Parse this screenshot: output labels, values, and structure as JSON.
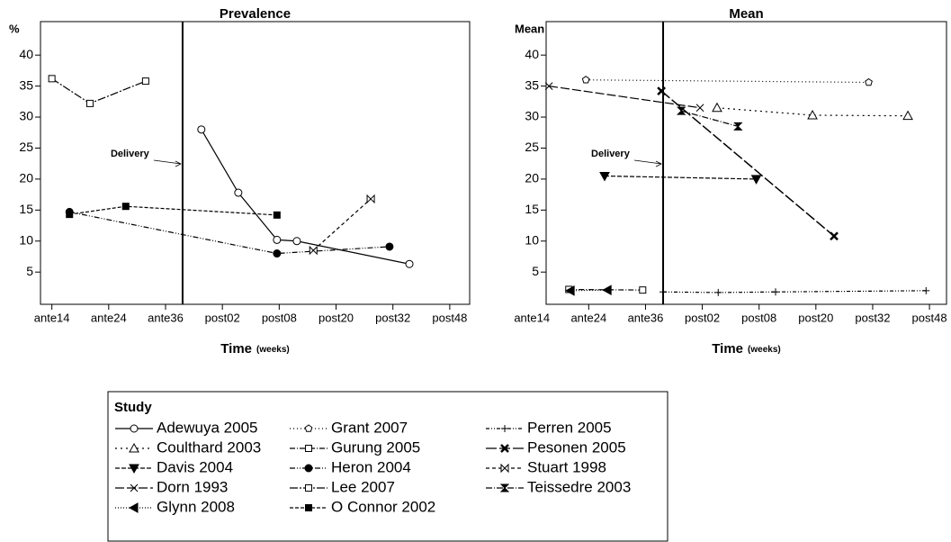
{
  "chart_data": [
    {
      "type": "line",
      "title": "Prevalence",
      "ylabel": "%",
      "xlabel": "Time",
      "xlabel_unit": "(weeks)",
      "xlim": [
        -0.2,
        7.35
      ],
      "ylim": [
        -0.2,
        45.4
      ],
      "xticks": [
        {
          "value": 0,
          "label": "ante14"
        },
        {
          "value": 1,
          "label": "ante24"
        },
        {
          "value": 2,
          "label": "ante36"
        },
        {
          "value": 3,
          "label": "post02"
        },
        {
          "value": 4,
          "label": "post08"
        },
        {
          "value": 5,
          "label": "post20"
        },
        {
          "value": 6,
          "label": "post32"
        },
        {
          "value": 7,
          "label": "post48"
        }
      ],
      "yticks": [
        5,
        10,
        15,
        20,
        25,
        30,
        35,
        40
      ],
      "vline": 2.3,
      "annotation": "Delivery",
      "series": [
        {
          "name": "Adewuya 2005",
          "color": "#000000",
          "x": [
            2.63,
            3.28,
            3.96,
            4.31,
            6.29
          ],
          "values": [
            28,
            17.8,
            10.2,
            10,
            6.3
          ]
        },
        {
          "name": "Lee 2007",
          "color": "#000000",
          "x": [
            0,
            0.67,
            1.65
          ],
          "values": [
            36.2,
            32.2,
            35.8
          ]
        },
        {
          "name": "O Connor 2002",
          "color": "#000000",
          "x": [
            0.31,
            1.3,
            3.96
          ],
          "values": [
            14.3,
            15.6,
            14.2
          ]
        },
        {
          "name": "Heron 2004",
          "color": "#000000",
          "x": [
            0.31,
            3.96,
            5.94
          ],
          "values": [
            14.7,
            8,
            9.1
          ]
        },
        {
          "name": "Stuart 1998",
          "color": "#000000",
          "x": [
            4.6,
            5.61
          ],
          "values": [
            8.5,
            16.8
          ]
        }
      ]
    },
    {
      "type": "line",
      "title": "Mean",
      "ylabel": "Mean",
      "xlabel": "Time",
      "xlabel_unit": "(weeks)",
      "xlim": [
        0.25,
        7.3
      ],
      "ylim": [
        -0.2,
        45.4
      ],
      "xticks": [
        {
          "value": 0,
          "label": "ante14"
        },
        {
          "value": 1,
          "label": "ante24"
        },
        {
          "value": 2,
          "label": "ante36"
        },
        {
          "value": 3,
          "label": "post02"
        },
        {
          "value": 4,
          "label": "post08"
        },
        {
          "value": 5,
          "label": "post20"
        },
        {
          "value": 6,
          "label": "post32"
        },
        {
          "value": 7,
          "label": "post48"
        }
      ],
      "yticks": [
        5,
        10,
        15,
        20,
        25,
        30,
        35,
        40
      ],
      "vline": 2.31,
      "annotation": "Delivery",
      "series": [
        {
          "name": "Dorn 1993",
          "color": "#000000",
          "x": [
            0.3,
            2.96
          ],
          "values": [
            35,
            31.5
          ]
        },
        {
          "name": "Grant 2007",
          "color": "#000000",
          "x": [
            0.95,
            5.93
          ],
          "values": [
            36,
            35.6
          ]
        },
        {
          "name": "Coulthard 2003",
          "color": "#000000",
          "x": [
            3.26,
            4.94,
            6.62
          ],
          "values": [
            31.5,
            30.3,
            30.2
          ]
        },
        {
          "name": "Teissedre 2003",
          "color": "#000000",
          "x": [
            2.63,
            3.63
          ],
          "values": [
            31,
            28.5
          ]
        },
        {
          "name": "Pesonen 2005",
          "color": "#000000",
          "x": [
            2.28,
            5.32
          ],
          "values": [
            34.2,
            10.8
          ]
        },
        {
          "name": "Davis 2004",
          "color": "#000000",
          "x": [
            1.28,
            3.95
          ],
          "values": [
            20.5,
            20
          ]
        },
        {
          "name": "Gurung 2005",
          "color": "#000000",
          "x": [
            0.65,
            1.95
          ],
          "values": [
            2.2,
            2.1
          ]
        },
        {
          "name": "Glynn 2008",
          "color": "#000000",
          "x": [
            0.68,
            1.33
          ],
          "values": [
            2,
            2.1
          ]
        },
        {
          "name": "Perren 2005",
          "color": "#000000",
          "x": [
            2.31,
            3.28,
            4.29,
            6.94
          ],
          "values": [
            1.8,
            1.7,
            1.8,
            2
          ]
        }
      ]
    }
  ],
  "legend": {
    "title": "Study",
    "entries": [
      {
        "name": "Adewuya 2005",
        "dash": "none",
        "marker": "circle",
        "filled": false
      },
      {
        "name": "Coulthard 2003",
        "dash": "2 4",
        "marker": "triangle",
        "filled": false
      },
      {
        "name": "Davis 2004",
        "dash": "5 2",
        "marker": "tri-down",
        "filled": true
      },
      {
        "name": "Dorn 1993",
        "dash": "10 3",
        "marker": "x",
        "filled": false
      },
      {
        "name": "Glynn 2008",
        "dash": "1 2",
        "marker": "tri-left",
        "filled": true
      },
      {
        "name": "Grant 2007",
        "dash": "1 3",
        "marker": "pentagon",
        "filled": false
      },
      {
        "name": "Gurung 2005",
        "dash": "6 2 1 2",
        "marker": "square",
        "filled": false
      },
      {
        "name": "Heron 2004",
        "dash": "6 2 1 2 1 2",
        "marker": "circle",
        "filled": true
      },
      {
        "name": "Lee 2007",
        "dash": "9 2 2 2",
        "marker": "square",
        "filled": false
      },
      {
        "name": "O Connor 2002",
        "dash": "4 2",
        "marker": "square",
        "filled": true
      },
      {
        "name": "Perren 2005",
        "dash": "4 2 1 2 1 2",
        "marker": "plus",
        "filled": false
      },
      {
        "name": "Pesonen 2005",
        "dash": "12 3",
        "marker": "x",
        "filled": true
      },
      {
        "name": "Stuart 1998",
        "dash": "4 3",
        "marker": "bowtie",
        "filled": false
      },
      {
        "name": "Teissedre 2003",
        "dash": "7 2 1 2",
        "marker": "hourglass",
        "filled": true
      }
    ]
  }
}
